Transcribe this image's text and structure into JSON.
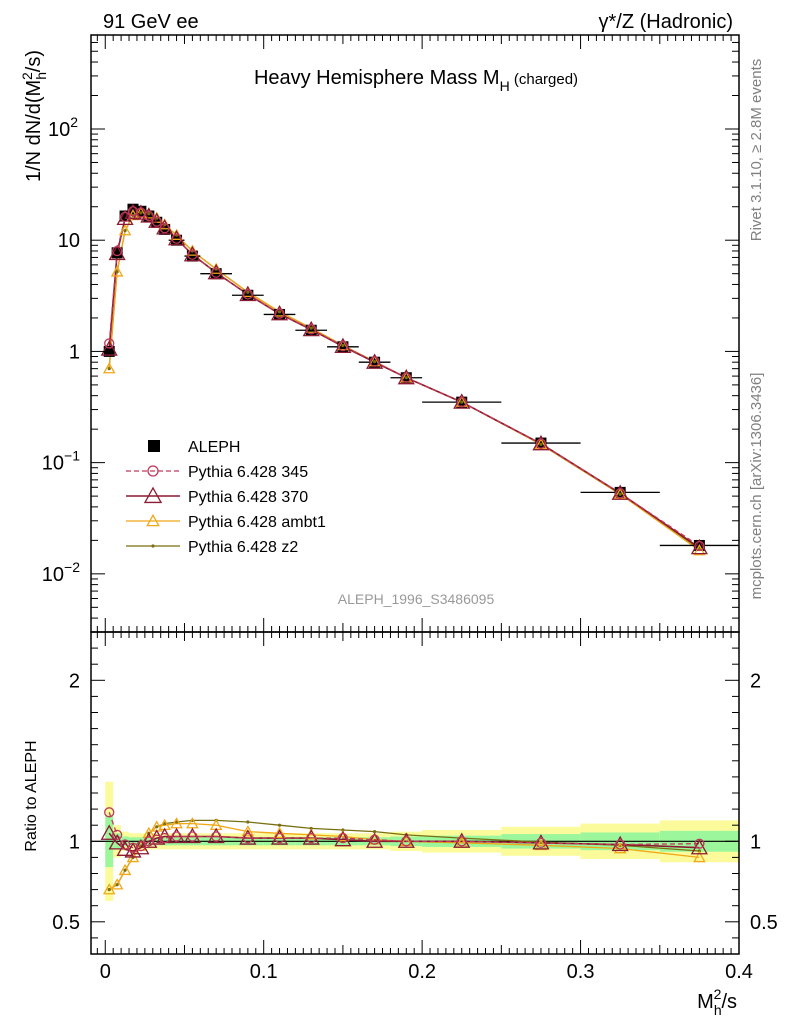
{
  "header": {
    "left": "91 GeV ee",
    "right": "γ*/Z (Hadronic)"
  },
  "side_labels": {
    "rivet": "Rivet 3.1.10, ≥ 2.8M events",
    "site": "mcplots.cern.ch [arXiv:1306.3436]"
  },
  "analysis_id": "ALEPH_1996_S3486095",
  "colors": {
    "data": "#000000",
    "p345": "#c0395a",
    "p370": "#8b1a32",
    "ambt1": "#f0a818",
    "z2": "#7a6f10",
    "band_inner": "#9cf79c",
    "band_outer": "#fbfb9c"
  },
  "chart_data": [
    {
      "type": "scatter",
      "title_main": "Heavy Hemisphere Mass M",
      "title_sub": "H",
      "title_suffix": " (charged)",
      "ylabel": "1/N dN/d(M_h^2/s)",
      "xlabel": "M_h^2/s",
      "yscale": "log",
      "ylim": [
        0.003,
        700
      ],
      "xlim": [
        -0.009,
        0.4
      ],
      "yticks": [
        {
          "v": 0.01,
          "base": "10",
          "exp": "−2"
        },
        {
          "v": 0.1,
          "base": "10",
          "exp": "−1"
        },
        {
          "v": 1,
          "base": "1",
          "exp": ""
        },
        {
          "v": 10,
          "base": "10",
          "exp": ""
        },
        {
          "v": 100,
          "base": "10",
          "exp": "2"
        }
      ],
      "legend_position": "middle-left",
      "legend": [
        {
          "key": "data",
          "label": "ALEPH"
        },
        {
          "key": "p345",
          "label": "Pythia 6.428 345"
        },
        {
          "key": "p370",
          "label": "Pythia 6.428 370"
        },
        {
          "key": "ambt1",
          "label": "Pythia 6.428 ambt1"
        },
        {
          "key": "z2",
          "label": "Pythia 6.428 z2"
        }
      ],
      "x": [
        0.0025,
        0.0075,
        0.0125,
        0.0175,
        0.0225,
        0.0275,
        0.0325,
        0.0375,
        0.045,
        0.055,
        0.07,
        0.09,
        0.11,
        0.13,
        0.15,
        0.17,
        0.19,
        0.225,
        0.275,
        0.325,
        0.375
      ],
      "x_err": [
        0.0025,
        0.0025,
        0.0025,
        0.0025,
        0.0025,
        0.0025,
        0.0025,
        0.0025,
        0.005,
        0.005,
        0.01,
        0.01,
        0.01,
        0.01,
        0.01,
        0.01,
        0.01,
        0.025,
        0.025,
        0.025,
        0.025
      ],
      "series": [
        {
          "key": "data",
          "name": "ALEPH",
          "values": [
            1.0,
            7.7,
            16.5,
            19.0,
            18.2,
            16.5,
            14.5,
            12.5,
            10.0,
            7.2,
            5.0,
            3.2,
            2.15,
            1.55,
            1.1,
            0.8,
            0.58,
            0.35,
            0.15,
            0.054,
            0.018
          ]
        },
        {
          "key": "p345",
          "name": "Pythia 6.428 345",
          "values": [
            1.18,
            8.0,
            16.2,
            18.2,
            17.7,
            16.5,
            14.7,
            12.8,
            10.3,
            7.4,
            5.1,
            3.26,
            2.19,
            1.58,
            1.12,
            0.81,
            0.58,
            0.35,
            0.148,
            0.053,
            0.0178
          ]
        },
        {
          "key": "p370",
          "name": "Pythia 6.428 370",
          "values": [
            1.05,
            7.6,
            15.7,
            17.8,
            17.5,
            16.5,
            14.8,
            12.9,
            10.3,
            7.4,
            5.1,
            3.25,
            2.18,
            1.57,
            1.11,
            0.8,
            0.58,
            0.35,
            0.148,
            0.053,
            0.0172
          ]
        },
        {
          "key": "ambt1",
          "name": "Pythia 6.428 ambt1",
          "values": [
            0.7,
            5.2,
            12.2,
            16.7,
            17.6,
            17.3,
            15.8,
            13.8,
            11.1,
            8.0,
            5.5,
            3.4,
            2.27,
            1.62,
            1.13,
            0.81,
            0.58,
            0.35,
            0.146,
            0.052,
            0.0162
          ]
        },
        {
          "key": "z2",
          "name": "Pythia 6.428 z2",
          "values": [
            0.7,
            5.2,
            12.2,
            16.7,
            17.6,
            17.3,
            15.8,
            13.8,
            11.1,
            8.0,
            5.5,
            3.4,
            2.27,
            1.62,
            1.13,
            0.81,
            0.58,
            0.35,
            0.146,
            0.052,
            0.0168
          ]
        }
      ]
    },
    {
      "type": "line",
      "ylabel": "Ratio to ALEPH",
      "xlabel": "M_h^2/s",
      "ylim": [
        0.3,
        2.3
      ],
      "xlim": [
        -0.009,
        0.4
      ],
      "xticks": [
        0,
        0.1,
        0.2,
        0.3,
        0.4
      ],
      "xtick_labels": [
        "0",
        "0.1",
        "0.2",
        "0.3",
        "0.4"
      ],
      "yticks": [
        0.5,
        1,
        2
      ],
      "ytick_labels": [
        "0.5",
        "1",
        "2"
      ],
      "band_inner_halfwidth": [
        0.16,
        0.05,
        0.03,
        0.025,
        0.025,
        0.025,
        0.025,
        0.025,
        0.025,
        0.025,
        0.025,
        0.025,
        0.025,
        0.025,
        0.025,
        0.025,
        0.03,
        0.035,
        0.045,
        0.055,
        0.065
      ],
      "band_outer_halfwidth": [
        0.37,
        0.1,
        0.06,
        0.05,
        0.05,
        0.05,
        0.05,
        0.05,
        0.05,
        0.05,
        0.05,
        0.05,
        0.05,
        0.05,
        0.05,
        0.05,
        0.06,
        0.07,
        0.09,
        0.11,
        0.13
      ],
      "series": [
        {
          "key": "p345",
          "name": "Pythia 6.428 345",
          "values": [
            1.18,
            1.04,
            0.98,
            0.96,
            0.97,
            1.0,
            1.01,
            1.02,
            1.03,
            1.03,
            1.03,
            1.02,
            1.02,
            1.02,
            1.02,
            1.01,
            1.0,
            1.0,
            0.99,
            0.98,
            0.985
          ]
        },
        {
          "key": "p370",
          "name": "Pythia 6.428 370",
          "values": [
            1.05,
            0.99,
            0.95,
            0.94,
            0.96,
            1.0,
            1.02,
            1.03,
            1.03,
            1.03,
            1.03,
            1.02,
            1.02,
            1.02,
            1.01,
            1.0,
            1.0,
            1.0,
            0.99,
            0.98,
            0.96
          ]
        },
        {
          "key": "ambt1",
          "name": "Pythia 6.428 ambt1",
          "values": [
            0.7,
            0.73,
            0.82,
            0.9,
            0.97,
            1.05,
            1.09,
            1.1,
            1.11,
            1.11,
            1.1,
            1.06,
            1.05,
            1.04,
            1.03,
            1.01,
            1.0,
            0.99,
            0.975,
            0.955,
            0.9
          ]
        },
        {
          "key": "z2",
          "name": "Pythia 6.428 z2",
          "values": [
            0.7,
            0.73,
            0.82,
            0.9,
            0.97,
            1.05,
            1.09,
            1.11,
            1.12,
            1.13,
            1.13,
            1.12,
            1.1,
            1.08,
            1.07,
            1.06,
            1.04,
            1.02,
            0.995,
            0.975,
            0.94
          ]
        }
      ]
    }
  ]
}
